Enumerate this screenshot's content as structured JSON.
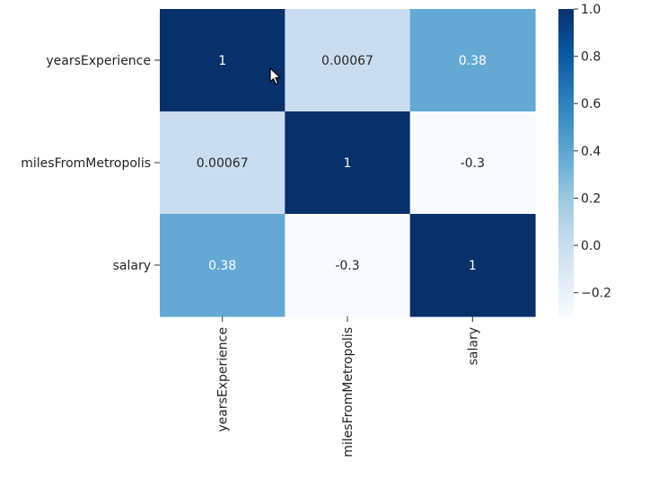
{
  "chart_data": {
    "type": "heatmap",
    "title": "",
    "xlabel": "",
    "ylabel": "",
    "x_categories": [
      "yearsExperience",
      "milesFromMetropolis",
      "salary"
    ],
    "y_categories": [
      "yearsExperience",
      "milesFromMetropolis",
      "salary"
    ],
    "values": [
      [
        1,
        0.00067,
        0.38
      ],
      [
        0.00067,
        1,
        -0.3
      ],
      [
        0.38,
        -0.3,
        1
      ]
    ],
    "cell_labels": [
      [
        "1",
        "0.00067",
        "0.38"
      ],
      [
        "0.00067",
        "1",
        "-0.3"
      ],
      [
        "0.38",
        "-0.3",
        "1"
      ]
    ],
    "colormap": "Blues",
    "vmin": -0.3,
    "vmax": 1.0,
    "colorbar_ticks": [
      1.0,
      0.8,
      0.6,
      0.4,
      0.2,
      0.0,
      -0.2
    ],
    "colorbar_tick_labels": [
      "1.0",
      "0.8",
      "0.6",
      "0.4",
      "0.2",
      "0.0",
      "−0.2"
    ],
    "grid": false,
    "colors": {
      "label_text": "#222222",
      "dark_cell_text": "#ffffff",
      "light_cell_text": "#262626"
    }
  },
  "overlay": {
    "cursor_icon": "mouse-pointer-icon"
  }
}
